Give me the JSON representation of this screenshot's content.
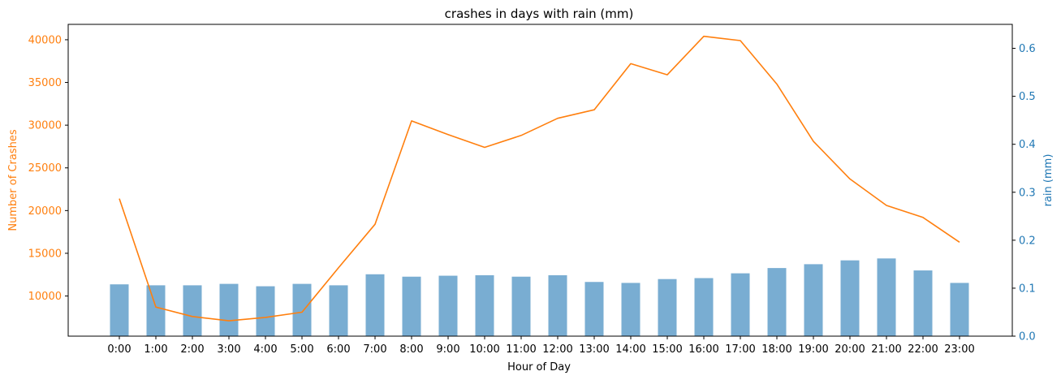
{
  "chart_data": {
    "type": "bar+line",
    "title": "crashes in days with rain (mm)",
    "xlabel": "Hour of Day",
    "categories": [
      "0:00",
      "1:00",
      "2:00",
      "3:00",
      "4:00",
      "5:00",
      "6:00",
      "7:00",
      "8:00",
      "9:00",
      "10:00",
      "11:00",
      "12:00",
      "13:00",
      "14:00",
      "15:00",
      "16:00",
      "17:00",
      "18:00",
      "19:00",
      "20:00",
      "21:00",
      "22:00",
      "23:00"
    ],
    "left_axis": {
      "label": "Number of Crashes",
      "color": "#ff7f0e",
      "ylim": [
        5300,
        41800
      ],
      "ticks": [
        10000,
        15000,
        20000,
        25000,
        30000,
        35000,
        40000
      ]
    },
    "right_axis": {
      "label": "rain (mm)",
      "color": "#1f77b4",
      "ylim": [
        0.0,
        0.65
      ],
      "ticks": [
        0.0,
        0.1,
        0.2,
        0.3,
        0.4,
        0.5,
        0.6
      ]
    },
    "line_series": {
      "axis": "left",
      "color": "#ff7f0e",
      "values": [
        21400,
        8700,
        7600,
        7100,
        7500,
        8100,
        13300,
        18400,
        30500,
        28900,
        27400,
        28800,
        30800,
        31800,
        37200,
        35900,
        40400,
        39900,
        34800,
        28100,
        23700,
        20600,
        19200,
        16300
      ]
    },
    "bar_series": {
      "axis": "right",
      "color": "#1f77b4",
      "opacity": 0.6,
      "values": [
        0.108,
        0.106,
        0.106,
        0.109,
        0.104,
        0.109,
        0.106,
        0.129,
        0.124,
        0.126,
        0.127,
        0.124,
        0.127,
        0.113,
        0.111,
        0.119,
        0.121,
        0.131,
        0.142,
        0.15,
        0.158,
        0.162,
        0.137,
        0.111
      ]
    },
    "grid": false,
    "legend": "none"
  }
}
